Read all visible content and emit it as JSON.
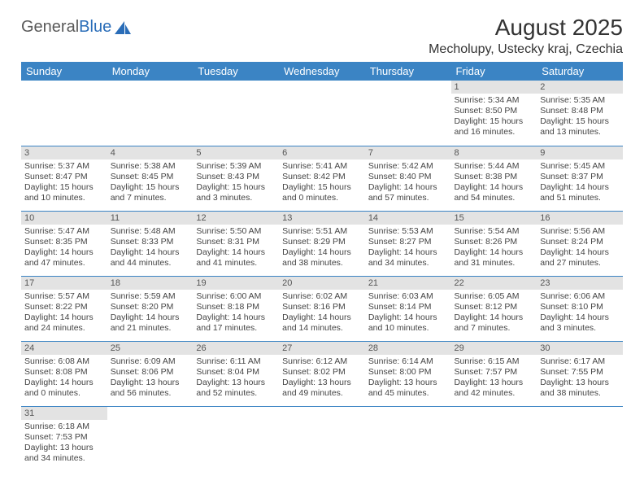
{
  "logo": {
    "part1": "General",
    "part2": "Blue"
  },
  "title": "August 2025",
  "location": "Mecholupy, Ustecky kraj, Czechia",
  "day_headers": [
    "Sunday",
    "Monday",
    "Tuesday",
    "Wednesday",
    "Thursday",
    "Friday",
    "Saturday"
  ],
  "colors": {
    "header_bg": "#3b84c4",
    "header_text": "#ffffff",
    "daynum_bg": "#e3e3e3",
    "border": "#3b84c4"
  },
  "weeks": [
    [
      null,
      null,
      null,
      null,
      null,
      {
        "n": "1",
        "sr": "Sunrise: 5:34 AM",
        "ss": "Sunset: 8:50 PM",
        "dl1": "Daylight: 15 hours",
        "dl2": "and 16 minutes."
      },
      {
        "n": "2",
        "sr": "Sunrise: 5:35 AM",
        "ss": "Sunset: 8:48 PM",
        "dl1": "Daylight: 15 hours",
        "dl2": "and 13 minutes."
      }
    ],
    [
      {
        "n": "3",
        "sr": "Sunrise: 5:37 AM",
        "ss": "Sunset: 8:47 PM",
        "dl1": "Daylight: 15 hours",
        "dl2": "and 10 minutes."
      },
      {
        "n": "4",
        "sr": "Sunrise: 5:38 AM",
        "ss": "Sunset: 8:45 PM",
        "dl1": "Daylight: 15 hours",
        "dl2": "and 7 minutes."
      },
      {
        "n": "5",
        "sr": "Sunrise: 5:39 AM",
        "ss": "Sunset: 8:43 PM",
        "dl1": "Daylight: 15 hours",
        "dl2": "and 3 minutes."
      },
      {
        "n": "6",
        "sr": "Sunrise: 5:41 AM",
        "ss": "Sunset: 8:42 PM",
        "dl1": "Daylight: 15 hours",
        "dl2": "and 0 minutes."
      },
      {
        "n": "7",
        "sr": "Sunrise: 5:42 AM",
        "ss": "Sunset: 8:40 PM",
        "dl1": "Daylight: 14 hours",
        "dl2": "and 57 minutes."
      },
      {
        "n": "8",
        "sr": "Sunrise: 5:44 AM",
        "ss": "Sunset: 8:38 PM",
        "dl1": "Daylight: 14 hours",
        "dl2": "and 54 minutes."
      },
      {
        "n": "9",
        "sr": "Sunrise: 5:45 AM",
        "ss": "Sunset: 8:37 PM",
        "dl1": "Daylight: 14 hours",
        "dl2": "and 51 minutes."
      }
    ],
    [
      {
        "n": "10",
        "sr": "Sunrise: 5:47 AM",
        "ss": "Sunset: 8:35 PM",
        "dl1": "Daylight: 14 hours",
        "dl2": "and 47 minutes."
      },
      {
        "n": "11",
        "sr": "Sunrise: 5:48 AM",
        "ss": "Sunset: 8:33 PM",
        "dl1": "Daylight: 14 hours",
        "dl2": "and 44 minutes."
      },
      {
        "n": "12",
        "sr": "Sunrise: 5:50 AM",
        "ss": "Sunset: 8:31 PM",
        "dl1": "Daylight: 14 hours",
        "dl2": "and 41 minutes."
      },
      {
        "n": "13",
        "sr": "Sunrise: 5:51 AM",
        "ss": "Sunset: 8:29 PM",
        "dl1": "Daylight: 14 hours",
        "dl2": "and 38 minutes."
      },
      {
        "n": "14",
        "sr": "Sunrise: 5:53 AM",
        "ss": "Sunset: 8:27 PM",
        "dl1": "Daylight: 14 hours",
        "dl2": "and 34 minutes."
      },
      {
        "n": "15",
        "sr": "Sunrise: 5:54 AM",
        "ss": "Sunset: 8:26 PM",
        "dl1": "Daylight: 14 hours",
        "dl2": "and 31 minutes."
      },
      {
        "n": "16",
        "sr": "Sunrise: 5:56 AM",
        "ss": "Sunset: 8:24 PM",
        "dl1": "Daylight: 14 hours",
        "dl2": "and 27 minutes."
      }
    ],
    [
      {
        "n": "17",
        "sr": "Sunrise: 5:57 AM",
        "ss": "Sunset: 8:22 PM",
        "dl1": "Daylight: 14 hours",
        "dl2": "and 24 minutes."
      },
      {
        "n": "18",
        "sr": "Sunrise: 5:59 AM",
        "ss": "Sunset: 8:20 PM",
        "dl1": "Daylight: 14 hours",
        "dl2": "and 21 minutes."
      },
      {
        "n": "19",
        "sr": "Sunrise: 6:00 AM",
        "ss": "Sunset: 8:18 PM",
        "dl1": "Daylight: 14 hours",
        "dl2": "and 17 minutes."
      },
      {
        "n": "20",
        "sr": "Sunrise: 6:02 AM",
        "ss": "Sunset: 8:16 PM",
        "dl1": "Daylight: 14 hours",
        "dl2": "and 14 minutes."
      },
      {
        "n": "21",
        "sr": "Sunrise: 6:03 AM",
        "ss": "Sunset: 8:14 PM",
        "dl1": "Daylight: 14 hours",
        "dl2": "and 10 minutes."
      },
      {
        "n": "22",
        "sr": "Sunrise: 6:05 AM",
        "ss": "Sunset: 8:12 PM",
        "dl1": "Daylight: 14 hours",
        "dl2": "and 7 minutes."
      },
      {
        "n": "23",
        "sr": "Sunrise: 6:06 AM",
        "ss": "Sunset: 8:10 PM",
        "dl1": "Daylight: 14 hours",
        "dl2": "and 3 minutes."
      }
    ],
    [
      {
        "n": "24",
        "sr": "Sunrise: 6:08 AM",
        "ss": "Sunset: 8:08 PM",
        "dl1": "Daylight: 14 hours",
        "dl2": "and 0 minutes."
      },
      {
        "n": "25",
        "sr": "Sunrise: 6:09 AM",
        "ss": "Sunset: 8:06 PM",
        "dl1": "Daylight: 13 hours",
        "dl2": "and 56 minutes."
      },
      {
        "n": "26",
        "sr": "Sunrise: 6:11 AM",
        "ss": "Sunset: 8:04 PM",
        "dl1": "Daylight: 13 hours",
        "dl2": "and 52 minutes."
      },
      {
        "n": "27",
        "sr": "Sunrise: 6:12 AM",
        "ss": "Sunset: 8:02 PM",
        "dl1": "Daylight: 13 hours",
        "dl2": "and 49 minutes."
      },
      {
        "n": "28",
        "sr": "Sunrise: 6:14 AM",
        "ss": "Sunset: 8:00 PM",
        "dl1": "Daylight: 13 hours",
        "dl2": "and 45 minutes."
      },
      {
        "n": "29",
        "sr": "Sunrise: 6:15 AM",
        "ss": "Sunset: 7:57 PM",
        "dl1": "Daylight: 13 hours",
        "dl2": "and 42 minutes."
      },
      {
        "n": "30",
        "sr": "Sunrise: 6:17 AM",
        "ss": "Sunset: 7:55 PM",
        "dl1": "Daylight: 13 hours",
        "dl2": "and 38 minutes."
      }
    ],
    [
      {
        "n": "31",
        "sr": "Sunrise: 6:18 AM",
        "ss": "Sunset: 7:53 PM",
        "dl1": "Daylight: 13 hours",
        "dl2": "and 34 minutes."
      },
      null,
      null,
      null,
      null,
      null,
      null
    ]
  ]
}
